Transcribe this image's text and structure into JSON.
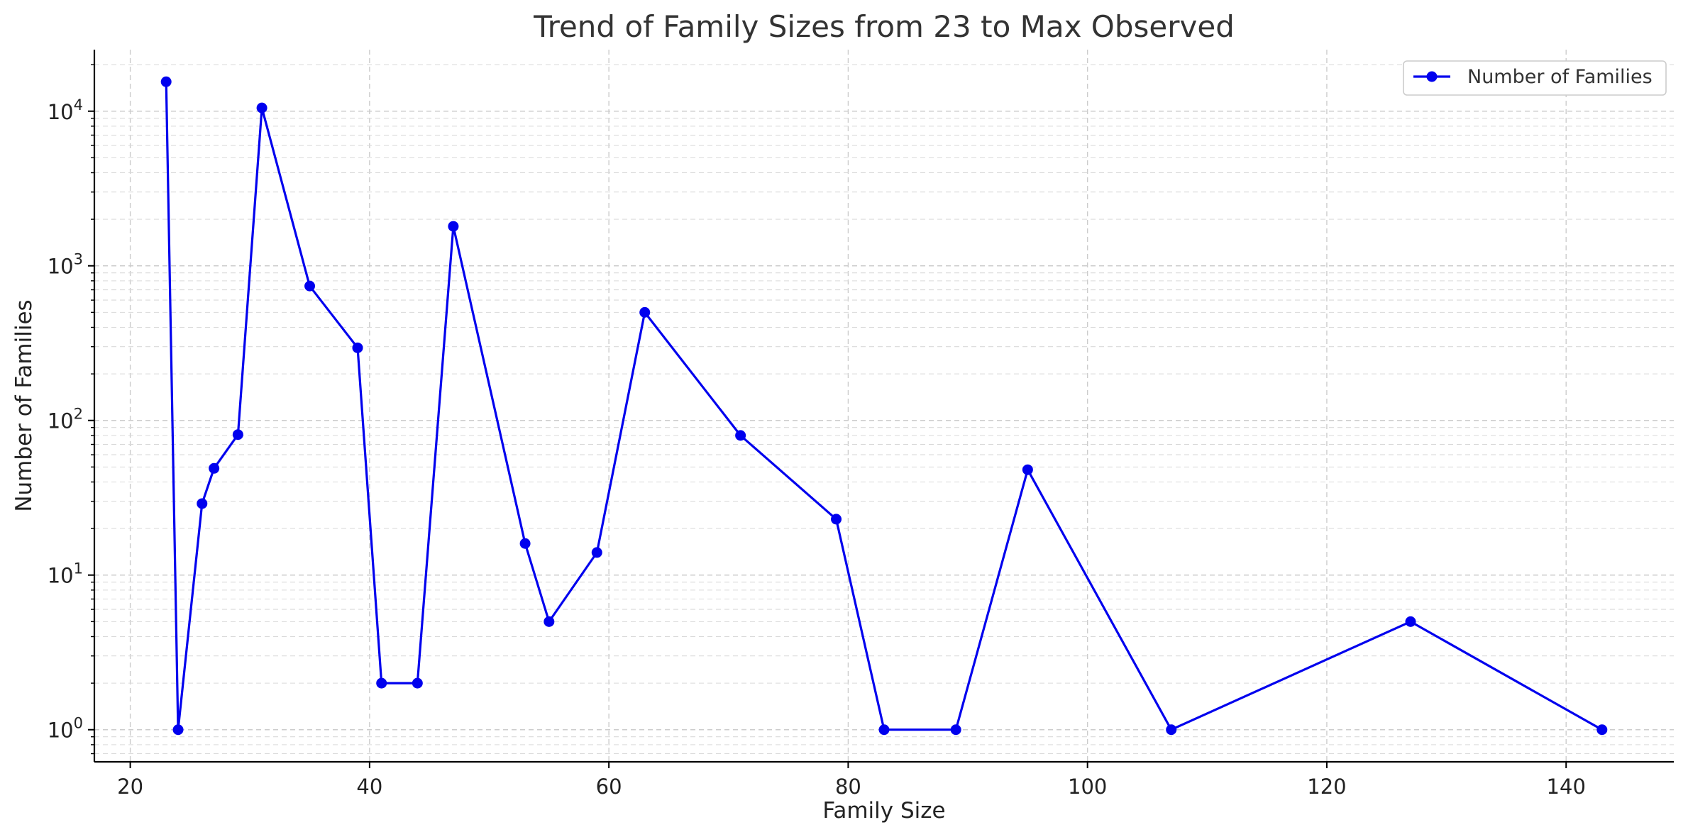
{
  "chart_data": {
    "type": "line",
    "title": "Trend of Family Sizes from 23 to Max Observed",
    "xlabel": "Family Size",
    "ylabel": "Number of Families",
    "yscale": "log",
    "xlim": [
      17,
      149
    ],
    "ylim": [
      0.62,
      25000
    ],
    "xticks": [
      20,
      40,
      60,
      80,
      100,
      120,
      140
    ],
    "yticks": [
      {
        "value": 1,
        "base": "10",
        "exp": "0"
      },
      {
        "value": 10,
        "base": "10",
        "exp": "1"
      },
      {
        "value": 100,
        "base": "10",
        "exp": "2"
      },
      {
        "value": 1000,
        "base": "10",
        "exp": "3"
      },
      {
        "value": 10000,
        "base": "10",
        "exp": "4"
      }
    ],
    "grid": true,
    "legend_position": "top-right",
    "series": [
      {
        "name": "Number of Families",
        "color": "#0000ee",
        "marker": "circle",
        "x": [
          23,
          24,
          26,
          27,
          29,
          31,
          35,
          39,
          41,
          44,
          47,
          53,
          55,
          59,
          63,
          71,
          79,
          83,
          89,
          95,
          107,
          127,
          143
        ],
        "y": [
          15500,
          1,
          29,
          49,
          81,
          10500,
          740,
          295,
          2,
          2,
          1800,
          16,
          5,
          14,
          500,
          80,
          23,
          1,
          1,
          48,
          1,
          5,
          1
        ]
      }
    ]
  }
}
